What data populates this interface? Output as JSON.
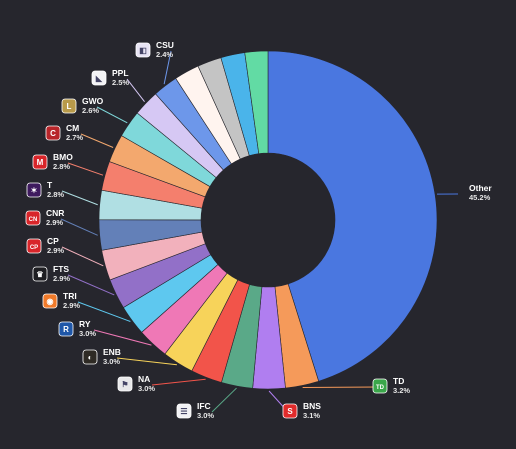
{
  "chart_data": {
    "type": "pie",
    "variant": "donut",
    "title": "",
    "slices": [
      {
        "name": "Other",
        "label": "Other",
        "value_label": "45.2%",
        "value": 45.2,
        "color": "#4a77e0",
        "icon": "none"
      },
      {
        "name": "TD",
        "label": "TD",
        "value_label": "3.2%",
        "value": 3.2,
        "color": "#f59a5a",
        "icon": "td-logo-icon",
        "icon_color": "#3aa64a",
        "icon_text": "TD"
      },
      {
        "name": "BNS",
        "label": "BNS",
        "value_label": "3.1%",
        "value": 3.1,
        "color": "#b07ef0",
        "icon": "scotiabank-logo-icon",
        "icon_color": "#e02b2b",
        "icon_text": "S"
      },
      {
        "name": "IFC",
        "label": "IFC",
        "value_label": "3.0%",
        "value": 3.0,
        "color": "#5aa988",
        "icon": "intact-logo-icon",
        "icon_color": "#f2f2f5",
        "icon_text": "☰"
      },
      {
        "name": "NA",
        "label": "NA",
        "value_label": "3.0%",
        "value": 3.0,
        "color": "#f2544a",
        "icon": "national-bank-logo-icon",
        "icon_color": "#e8e8ea",
        "icon_text": "⚑"
      },
      {
        "name": "ENB",
        "label": "ENB",
        "value_label": "3.0%",
        "value": 3.0,
        "color": "#f7d35a",
        "icon": "enbridge-logo-icon",
        "icon_color": "#2e2a24",
        "icon_text": "◐"
      },
      {
        "name": "RY",
        "label": "RY",
        "value_label": "3.0%",
        "value": 3.0,
        "color": "#ef78b6",
        "icon": "rbc-logo-icon",
        "icon_color": "#1f57a8",
        "icon_text": "R"
      },
      {
        "name": "TRI",
        "label": "TRI",
        "value_label": "2.9%",
        "value": 2.9,
        "color": "#5ec8ef",
        "icon": "thomson-reuters-logo-icon",
        "icon_color": "#f07a2a",
        "icon_text": "◉"
      },
      {
        "name": "FTS",
        "label": "FTS",
        "value_label": "2.9%",
        "value": 2.9,
        "color": "#9270c8",
        "icon": "fortis-logo-icon",
        "icon_color": "#1e1e22",
        "icon_text": "♛"
      },
      {
        "name": "CP",
        "label": "CP",
        "value_label": "2.9%",
        "value": 2.9,
        "color": "#f2b1bc",
        "icon": "cpkc-logo-icon",
        "icon_color": "#d8252a",
        "icon_text": "CP"
      },
      {
        "name": "CNR",
        "label": "CNR",
        "value_label": "2.9%",
        "value": 2.9,
        "color": "#6380b8",
        "icon": "cn-rail-logo-icon",
        "icon_color": "#d8252a",
        "icon_text": "CN"
      },
      {
        "name": "T",
        "label": "T",
        "value_label": "2.8%",
        "value": 2.8,
        "color": "#b0dfe3",
        "icon": "telus-logo-icon",
        "icon_color": "#3e1a5e",
        "icon_text": "✶"
      },
      {
        "name": "BMO",
        "label": "BMO",
        "value_label": "2.8%",
        "value": 2.8,
        "color": "#f47f6d",
        "icon": "bmo-logo-icon",
        "icon_color": "#d8252a",
        "icon_text": "M"
      },
      {
        "name": "CM",
        "label": "CM",
        "value_label": "2.7%",
        "value": 2.7,
        "color": "#f3a86e",
        "icon": "cibc-logo-icon",
        "icon_color": "#b8252a",
        "icon_text": "C"
      },
      {
        "name": "GWO",
        "label": "GWO",
        "value_label": "2.6%",
        "value": 2.6,
        "color": "#7fd8da",
        "icon": "great-west-lifeco-logo-icon",
        "icon_color": "#b89a4a",
        "icon_text": "L"
      },
      {
        "name": "PPL",
        "label": "PPL",
        "value_label": "2.5%",
        "value": 2.5,
        "color": "#d6c8f4",
        "icon": "pembina-logo-icon",
        "icon_color": "#f4f4f6",
        "icon_text": "◣"
      },
      {
        "name": "CSU",
        "label": "CSU",
        "value_label": "2.4%",
        "value": 2.4,
        "color": "#6d97ea",
        "icon": "constellation-software-logo-icon",
        "icon_color": "#e8e4f4",
        "icon_text": "◧"
      },
      {
        "name": "",
        "label": "",
        "value_label": "",
        "value": 2.4,
        "color": "#fff4ef",
        "icon": "none"
      },
      {
        "name": "",
        "label": "",
        "value_label": "",
        "value": 2.3,
        "color": "#c4c4c4",
        "icon": "none"
      },
      {
        "name": "",
        "label": "",
        "value_label": "",
        "value": 2.3,
        "color": "#4ab4ea",
        "icon": "none"
      },
      {
        "name": "",
        "label": "",
        "value_label": "",
        "value": 2.2,
        "color": "#62dba4",
        "icon": "none"
      }
    ],
    "legend": "none",
    "start_angle_deg": 0,
    "direction": "clockwise",
    "background_color": "#26262d",
    "label_line_color_mode": "slice-color"
  }
}
